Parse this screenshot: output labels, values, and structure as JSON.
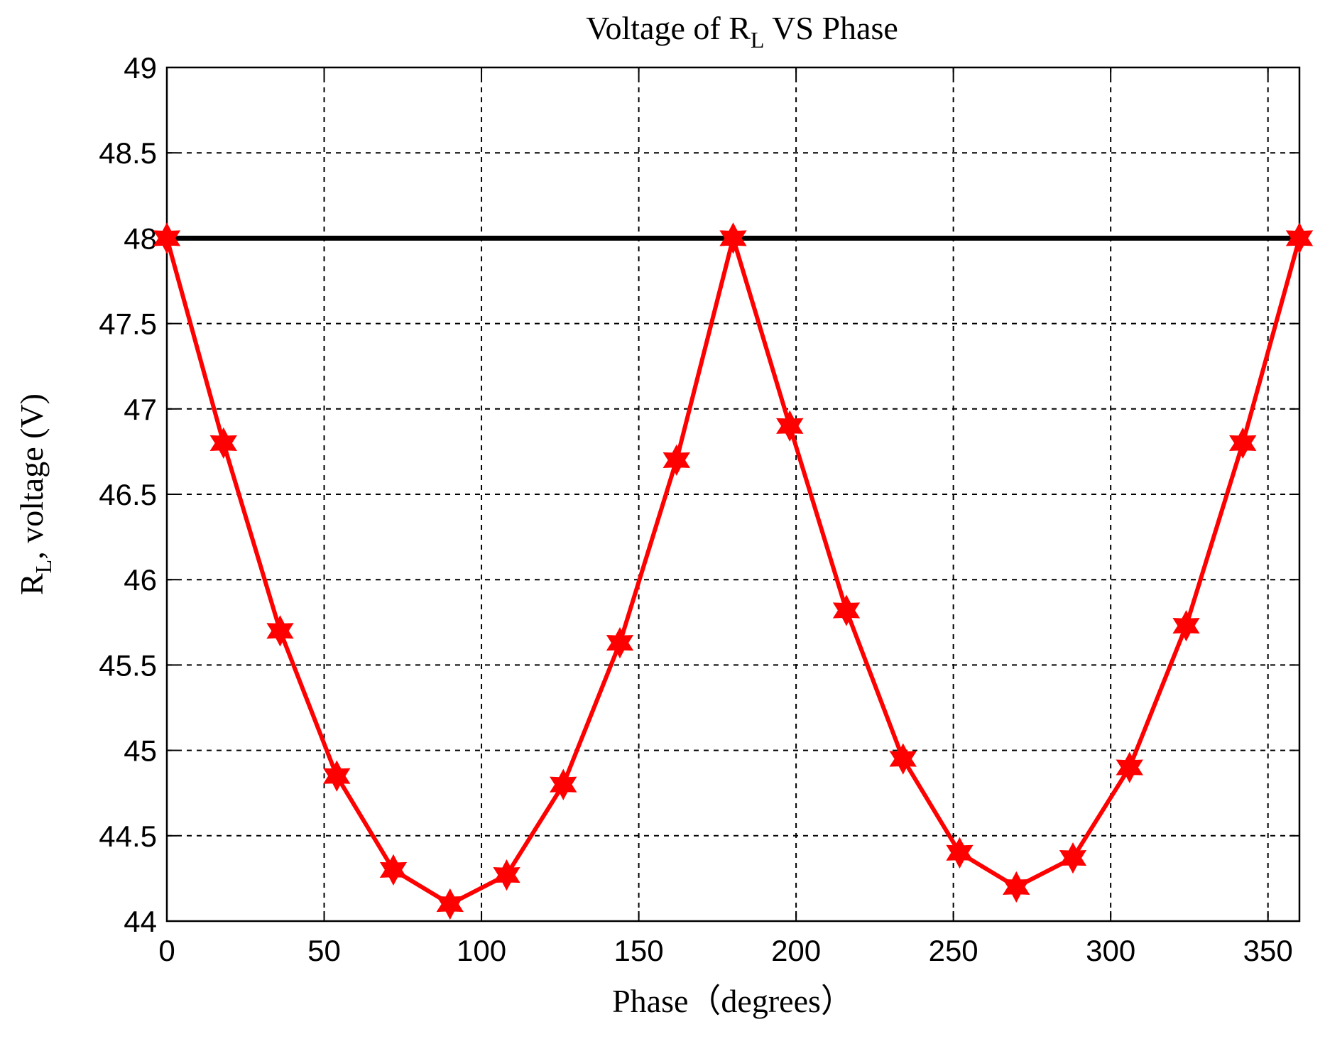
{
  "chart_data": {
    "type": "line",
    "title": {
      "text": "Voltage of R",
      "sub": "L",
      "rest": " VS Phase"
    },
    "x_label": "Phase（degrees）",
    "y_label": {
      "text": "R",
      "sub": "L",
      "rest": ", voltage (V)"
    },
    "xlim": [
      0,
      360
    ],
    "xticks": [
      0,
      50,
      100,
      150,
      200,
      250,
      300,
      350
    ],
    "ylim": [
      44,
      49
    ],
    "yticks": [
      44,
      44.5,
      45,
      45.5,
      46,
      46.5,
      47,
      47.5,
      48,
      48.5,
      49
    ],
    "grid": true,
    "series": [
      {
        "color": "#000000",
        "marker": false,
        "x": [
          0,
          360
        ],
        "values": [
          48,
          48
        ]
      },
      {
        "color": "#ff0000",
        "marker": true,
        "x": [
          0,
          18,
          36,
          54,
          72,
          90,
          108,
          126,
          144,
          162,
          180,
          198,
          216,
          234,
          252,
          270,
          288,
          306,
          324,
          342,
          360
        ],
        "values": [
          48,
          46.8,
          45.7,
          44.85,
          44.3,
          44.1,
          44.27,
          44.8,
          45.63,
          46.7,
          48,
          46.9,
          45.82,
          44.95,
          44.4,
          44.2,
          44.37,
          44.9,
          45.73,
          46.8,
          48
        ]
      }
    ]
  }
}
